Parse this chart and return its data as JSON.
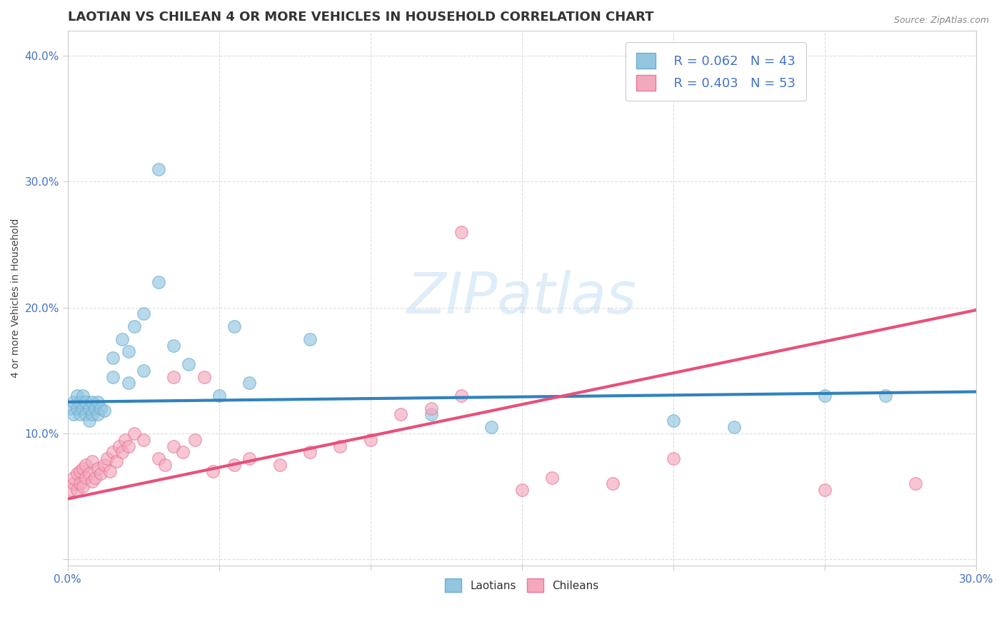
{
  "title": "LAOTIAN VS CHILEAN 4 OR MORE VEHICLES IN HOUSEHOLD CORRELATION CHART",
  "source_text": "Source: ZipAtlas.com",
  "xlabel": "",
  "ylabel": "4 or more Vehicles in Household",
  "xlim": [
    0.0,
    0.3
  ],
  "ylim": [
    -0.005,
    0.42
  ],
  "xticks": [
    0.0,
    0.05,
    0.1,
    0.15,
    0.2,
    0.25,
    0.3
  ],
  "xtick_labels": [
    "0.0%",
    "",
    "",
    "",
    "",
    "",
    "30.0%"
  ],
  "yticks": [
    0.0,
    0.1,
    0.2,
    0.3,
    0.4
  ],
  "ytick_labels": [
    "",
    "10.0%",
    "20.0%",
    "30.0%",
    "40.0%"
  ],
  "laotian_color": "#92c5de",
  "chilean_color": "#f4a8bc",
  "laotian_edge_color": "#6baed6",
  "chilean_edge_color": "#e8789a",
  "laotian_line_color": "#3182bd",
  "chilean_line_color": "#e8507a",
  "R_laotian": 0.062,
  "N_laotian": 43,
  "R_chilean": 0.403,
  "N_chilean": 53,
  "watermark": "ZIPatlas",
  "background_color": "#ffffff",
  "grid_color": "#dddddd",
  "title_fontsize": 13,
  "axis_label_fontsize": 10,
  "tick_fontsize": 11,
  "legend_fontsize": 13
}
